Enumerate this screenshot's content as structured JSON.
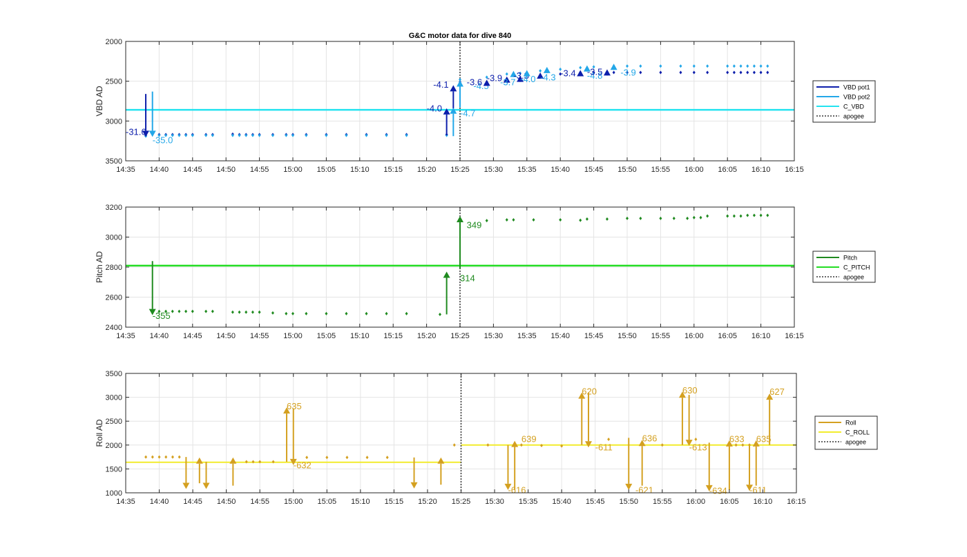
{
  "title": "G&C motor data for dive 840",
  "colors": {
    "vbd1": "#0c1eab",
    "vbd2": "#23a7e8",
    "cvbd": "#22e3f0",
    "pitch": "#1f8a1f",
    "cpitch": "#22dd22",
    "roll": "#d4a020",
    "croll": "#f2ec2c",
    "apogee": "#333333",
    "grid": "#e4e4e4",
    "axis": "#262626"
  },
  "x_ticks": [
    "14:35",
    "14:40",
    "14:45",
    "14:50",
    "14:55",
    "15:00",
    "15:05",
    "15:10",
    "15:15",
    "15:20",
    "15:25",
    "15:30",
    "15:35",
    "15:40",
    "15:45",
    "15:50",
    "15:55",
    "16:00",
    "16:05",
    "16:10",
    "16:15"
  ],
  "chart_data": [
    {
      "type": "scatter",
      "ylabel": "VBD AD",
      "ylim": [
        2000,
        3500
      ],
      "y_reversed": true,
      "y_ticks": [
        "2000",
        "2500",
        "3000",
        "3500"
      ],
      "grid": true,
      "legend": "right",
      "series": [
        {
          "name": "VBD pot1",
          "x": [
            "14:38",
            "14:40",
            "14:41",
            "14:42",
            "14:43",
            "14:44",
            "14:45",
            "14:47",
            "14:48",
            "14:51",
            "14:52",
            "14:53",
            "14:54",
            "14:55",
            "14:57",
            "14:59",
            "15:00",
            "15:02",
            "15:05",
            "15:08",
            "15:11",
            "15:14",
            "15:17",
            "15:23",
            "15:25",
            "15:29",
            "15:32",
            "15:34",
            "15:37",
            "15:40",
            "15:43",
            "15:45",
            "15:48",
            "15:50",
            "15:52",
            "15:55",
            "15:58",
            "16:00",
            "16:02",
            "16:05",
            "16:06",
            "16:07",
            "16:08",
            "16:09",
            "16:10",
            "16:11"
          ],
          "values": [
            3180,
            3170,
            3170,
            3170,
            3170,
            3170,
            3170,
            3170,
            3170,
            3165,
            3170,
            3170,
            3170,
            3170,
            3170,
            3170,
            3170,
            3170,
            3170,
            3170,
            3170,
            3170,
            3170,
            3170,
            2510,
            2510,
            2470,
            2460,
            2430,
            2410,
            2390,
            2390,
            2390,
            2390,
            2390,
            2390,
            2390,
            2390,
            2390,
            2390,
            2390,
            2390,
            2390,
            2390,
            2390,
            2390
          ]
        },
        {
          "name": "VBD pot2",
          "x": [
            "14:38",
            "14:40",
            "14:41",
            "14:42",
            "14:43",
            "14:44",
            "14:45",
            "14:47",
            "14:48",
            "14:51",
            "14:52",
            "14:53",
            "14:54",
            "14:55",
            "14:57",
            "14:59",
            "15:00",
            "15:02",
            "15:05",
            "15:08",
            "15:11",
            "15:14",
            "15:17",
            "15:23",
            "15:25",
            "15:29",
            "15:32",
            "15:34",
            "15:37",
            "15:40",
            "15:43",
            "15:45",
            "15:48",
            "15:50",
            "15:52",
            "15:55",
            "15:58",
            "16:00",
            "16:02",
            "16:05",
            "16:06",
            "16:07",
            "16:08",
            "16:09",
            "16:10",
            "16:11"
          ],
          "values": [
            3190,
            3180,
            3180,
            3180,
            3180,
            3180,
            3180,
            3180,
            3180,
            3180,
            3180,
            3180,
            3180,
            3180,
            3180,
            3180,
            3180,
            3180,
            3180,
            3180,
            3180,
            3180,
            3180,
            3180,
            2480,
            2450,
            2410,
            2400,
            2370,
            2350,
            2330,
            2320,
            2310,
            2310,
            2310,
            2310,
            2310,
            2310,
            2310,
            2310,
            2310,
            2310,
            2310,
            2310,
            2310,
            2310
          ]
        },
        {
          "name": "C_VBD",
          "constant": 2860
        },
        {
          "name": "apogee",
          "x_at": "15:25"
        }
      ],
      "arrows": [
        {
          "series": "VBD pot1",
          "x": "14:38",
          "from": 2660,
          "to": 3200,
          "label": "-31.6",
          "label_x": "14:35",
          "label_y": 3175
        },
        {
          "series": "VBD pot2",
          "x": "14:39",
          "from": 2630,
          "to": 3200,
          "label": "-35.0",
          "label_x": "14:39",
          "label_y": 3280
        },
        {
          "series": "VBD pot1",
          "x": "15:23",
          "from": 3180,
          "to": 2840,
          "label": "-4.0",
          "label_x": "15:20",
          "label_y": 2880
        },
        {
          "series": "VBD pot2",
          "x": "15:24",
          "from": 3190,
          "to": 2830,
          "label": "-4.7",
          "label_x": "15:25",
          "label_y": 2940
        },
        {
          "series": "VBD pot1",
          "x": "15:24",
          "from": 2840,
          "to": 2550,
          "label": "-4.1",
          "label_x": "15:21",
          "label_y": 2580
        },
        {
          "series": "VBD pot2",
          "x": "15:25",
          "from": 2830,
          "to": 2490,
          "label": "-4.5",
          "label_x": "15:27",
          "label_y": 2600
        },
        {
          "series": "VBD pot1",
          "x": "15:29",
          "from": 2540,
          "to": 2480,
          "label": "-3.6",
          "label_x": "15:26",
          "label_y": 2550
        },
        {
          "series": "VBD pot1",
          "x": "15:32",
          "from": 2500,
          "to": 2440,
          "label": "-3.9",
          "label_x": "15:29",
          "label_y": 2500
        },
        {
          "series": "VBD pot2",
          "x": "15:33",
          "from": 2430,
          "to": 2370,
          "label": "-3.7",
          "label_x": "15:31",
          "label_y": 2550
        },
        {
          "series": "VBD pot1",
          "x": "15:34",
          "from": 2500,
          "to": 2430,
          "label": "-3.3",
          "label_x": "15:33",
          "label_y": 2470
        },
        {
          "series": "VBD pot2",
          "x": "15:35",
          "from": 2430,
          "to": 2360,
          "label": "-4.0",
          "label_x": "15:34",
          "label_y": 2510
        },
        {
          "series": "VBD pot1",
          "x": "15:37",
          "from": 2450,
          "to": 2390,
          "label": "",
          "label_x": "15:37",
          "label_y": 2450
        },
        {
          "series": "VBD pot2",
          "x": "15:38",
          "from": 2380,
          "to": 2320,
          "label": "-4.3",
          "label_x": "15:37",
          "label_y": 2490
        },
        {
          "series": "VBD pot1",
          "x": "15:43",
          "from": 2430,
          "to": 2360,
          "label": "-3.4",
          "label_x": "15:40",
          "label_y": 2440
        },
        {
          "series": "VBD pot2",
          "x": "15:44",
          "from": 2370,
          "to": 2300,
          "label": "-4.8",
          "label_x": "15:44",
          "label_y": 2470
        },
        {
          "series": "VBD pot1",
          "x": "15:47",
          "from": 2420,
          "to": 2350,
          "label": "-3.5",
          "label_x": "15:44",
          "label_y": 2420
        },
        {
          "series": "VBD pot2",
          "x": "15:48",
          "from": 2350,
          "to": 2280,
          "label": "-3.9",
          "label_x": "15:49",
          "label_y": 2430
        }
      ]
    },
    {
      "type": "scatter",
      "ylabel": "Pitch AD",
      "ylim": [
        2400,
        3200
      ],
      "y_ticks": [
        "2400",
        "2600",
        "2800",
        "3000",
        "3200"
      ],
      "grid": true,
      "legend": "right",
      "series": [
        {
          "name": "Pitch",
          "x": [
            "14:40",
            "14:41",
            "14:42",
            "14:43",
            "14:44",
            "14:45",
            "14:47",
            "14:48",
            "14:51",
            "14:52",
            "14:53",
            "14:54",
            "14:55",
            "14:57",
            "14:59",
            "15:00",
            "15:02",
            "15:05",
            "15:08",
            "15:11",
            "15:14",
            "15:17",
            "15:22",
            "15:29",
            "15:32",
            "15:33",
            "15:36",
            "15:40",
            "15:43",
            "15:44",
            "15:47",
            "15:50",
            "15:52",
            "15:55",
            "15:57",
            "15:59",
            "16:00",
            "16:01",
            "16:02",
            "16:05",
            "16:06",
            "16:07",
            "16:08",
            "16:09",
            "16:10",
            "16:11"
          ],
          "values": [
            2505,
            2505,
            2505,
            2505,
            2505,
            2505,
            2505,
            2505,
            2500,
            2500,
            2500,
            2500,
            2500,
            2495,
            2490,
            2490,
            2490,
            2490,
            2490,
            2490,
            2490,
            2490,
            2485,
            3110,
            3115,
            3115,
            3115,
            3115,
            3112,
            3120,
            3120,
            3125,
            3125,
            3125,
            3125,
            3125,
            3130,
            3130,
            3140,
            3140,
            3140,
            3140,
            3145,
            3145,
            3145,
            3145
          ]
        },
        {
          "name": "C_PITCH",
          "constant": 2810
        },
        {
          "name": "apogee",
          "x_at": "15:25"
        }
      ],
      "arrows": [
        {
          "series": "Pitch",
          "x": "14:39",
          "from": 2840,
          "to": 2480,
          "label": "-355",
          "label_x": "14:39",
          "label_y": 2455
        },
        {
          "series": "Pitch",
          "x": "15:23",
          "from": 2485,
          "to": 2770,
          "label": "314",
          "label_x": "15:25",
          "label_y": 2705
        },
        {
          "series": "Pitch",
          "x": "15:25",
          "from": 2790,
          "to": 3140,
          "label": "349",
          "label_x": "15:26",
          "label_y": 3060
        }
      ]
    },
    {
      "type": "scatter",
      "ylabel": "Roll AD",
      "ylim": [
        1000,
        3500
      ],
      "y_ticks": [
        "1000",
        "1500",
        "2000",
        "2500",
        "3000",
        "3500"
      ],
      "grid": true,
      "legend": "right",
      "series": [
        {
          "name": "Roll",
          "x": [
            "14:38",
            "14:39",
            "14:40",
            "14:41",
            "14:42",
            "14:43",
            "14:53",
            "14:54",
            "14:55",
            "14:57",
            "15:02",
            "15:05",
            "15:08",
            "15:11",
            "15:14",
            "15:24",
            "15:29",
            "15:34",
            "15:37",
            "15:40",
            "15:47",
            "15:55",
            "16:00",
            "16:06",
            "16:07",
            "16:08"
          ],
          "values": [
            1750,
            1750,
            1750,
            1750,
            1750,
            1750,
            1650,
            1650,
            1650,
            1650,
            1740,
            1740,
            1740,
            1740,
            1740,
            2000,
            2000,
            2000,
            1990,
            1980,
            2120,
            2000,
            2120,
            2000,
            2000,
            2000
          ]
        },
        {
          "name": "C_ROLL",
          "constant_segments": [
            {
              "from": "14:35",
              "to": "15:25",
              "value": 1640
            },
            {
              "from": "15:25",
              "to": "16:15",
              "value": 2000
            }
          ]
        },
        {
          "name": "apogee",
          "x_at": "15:25"
        }
      ],
      "arrows": [
        {
          "series": "Roll",
          "x": "14:44",
          "from": 1750,
          "to": 1080,
          "label": "",
          "label_x": "14:44",
          "label_y": 1000
        },
        {
          "series": "Roll",
          "x": "14:46",
          "from": 1200,
          "to": 1740,
          "label": "",
          "label_x": "14:46",
          "label_y": 1000
        },
        {
          "series": "Roll",
          "x": "14:47",
          "from": 1650,
          "to": 1080,
          "label": "",
          "label_x": "14:47",
          "label_y": 1000
        },
        {
          "series": "Roll",
          "x": "14:51",
          "from": 1150,
          "to": 1740,
          "label": "",
          "label_x": "14:51",
          "label_y": 1000
        },
        {
          "series": "Roll",
          "x": "14:59",
          "from": 1650,
          "to": 2790,
          "label": "635",
          "label_x": "14:59",
          "label_y": 2750
        },
        {
          "series": "Roll",
          "x": "15:00",
          "from": 2760,
          "to": 1580,
          "label": "-632",
          "label_x": "15:00",
          "label_y": 1510
        },
        {
          "series": "Roll",
          "x": "15:18",
          "from": 1740,
          "to": 1090,
          "label": "",
          "label_x": "15:18",
          "label_y": 1000
        },
        {
          "series": "Roll",
          "x": "15:22",
          "from": 1170,
          "to": 1740,
          "label": "",
          "label_x": "15:22",
          "label_y": 1000
        },
        {
          "series": "Roll",
          "x": "15:32",
          "from": 2000,
          "to": 1060,
          "label": "-616",
          "label_x": "15:32",
          "label_y": 990
        },
        {
          "series": "Roll",
          "x": "15:33",
          "from": 1060,
          "to": 2090,
          "label": "639",
          "label_x": "15:34",
          "label_y": 2060
        },
        {
          "series": "Roll",
          "x": "15:43",
          "from": 2000,
          "to": 3100,
          "label": "620",
          "label_x": "15:43",
          "label_y": 3060
        },
        {
          "series": "Roll",
          "x": "15:44",
          "from": 3100,
          "to": 1950,
          "label": "-611",
          "label_x": "15:45",
          "label_y": 1890
        },
        {
          "series": "Roll",
          "x": "15:50",
          "from": 2150,
          "to": 1060,
          "label": "-621",
          "label_x": "15:51",
          "label_y": 990
        },
        {
          "series": "Roll",
          "x": "15:52",
          "from": 1150,
          "to": 2110,
          "label": "636",
          "label_x": "15:52",
          "label_y": 2080
        },
        {
          "series": "Roll",
          "x": "15:58",
          "from": 2000,
          "to": 3120,
          "label": "630",
          "label_x": "15:58",
          "label_y": 3080
        },
        {
          "series": "Roll",
          "x": "15:59",
          "from": 3050,
          "to": 1980,
          "label": "-613",
          "label_x": "15:59",
          "label_y": 1890
        },
        {
          "series": "Roll",
          "x": "16:02",
          "from": 2050,
          "to": 1030,
          "label": "-634",
          "label_x": "16:02",
          "label_y": 980
        },
        {
          "series": "Roll",
          "x": "16:05",
          "from": 1060,
          "to": 2100,
          "label": "633",
          "label_x": "16:05",
          "label_y": 2060
        },
        {
          "series": "Roll",
          "x": "16:08",
          "from": 2000,
          "to": 1040,
          "label": "-611",
          "label_x": "16:08",
          "label_y": 990
        },
        {
          "series": "Roll",
          "x": "16:09",
          "from": 1150,
          "to": 2100,
          "label": "635",
          "label_x": "16:09",
          "label_y": 2060
        },
        {
          "series": "Roll",
          "x": "16:11",
          "from": 2000,
          "to": 3080,
          "label": "627",
          "label_x": "16:11",
          "label_y": 3050
        }
      ]
    }
  ]
}
